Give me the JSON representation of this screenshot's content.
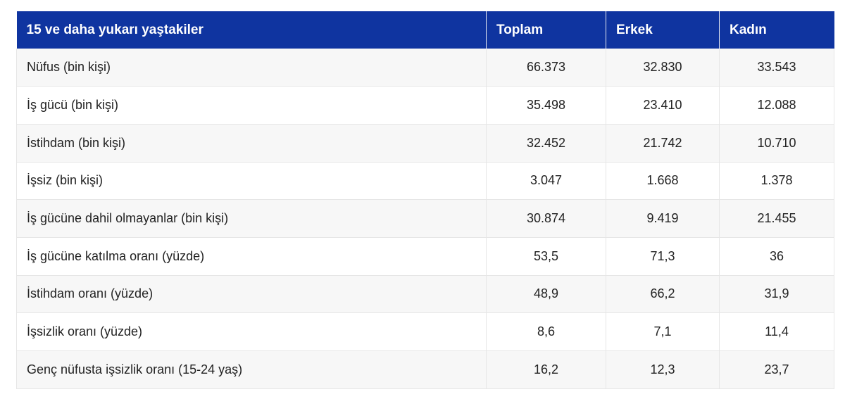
{
  "table": {
    "headers": [
      "15 ve daha yukarı yaştakiler",
      "Toplam",
      "Erkek",
      "Kadın"
    ],
    "rows": [
      [
        "Nüfus (bin kişi)",
        "66.373",
        "32.830",
        "33.543"
      ],
      [
        "İş gücü (bin kişi)",
        "35.498",
        "23.410",
        "12.088"
      ],
      [
        "İstihdam (bin kişi)",
        "32.452",
        "21.742",
        "10.710"
      ],
      [
        "İşsiz (bin kişi)",
        "3.047",
        "1.668",
        "1.378"
      ],
      [
        "İş gücüne dahil olmayanlar (bin kişi)",
        "30.874",
        "9.419",
        "21.455"
      ],
      [
        "İş gücüne katılma oranı (yüzde)",
        "53,5",
        "71,3",
        "36"
      ],
      [
        "İstihdam oranı (yüzde)",
        "48,9",
        "66,2",
        "31,9"
      ],
      [
        "İşsizlik oranı (yüzde)",
        "8,6",
        "7,1",
        "11,4"
      ],
      [
        "Genç nüfusta işsizlik oranı (15-24 yaş)",
        "16,2",
        "12,3",
        "23,7"
      ]
    ]
  },
  "colors": {
    "header_bg": "#0f34a0",
    "header_text": "#ffffff",
    "row_alt_bg": "#f7f7f7"
  }
}
